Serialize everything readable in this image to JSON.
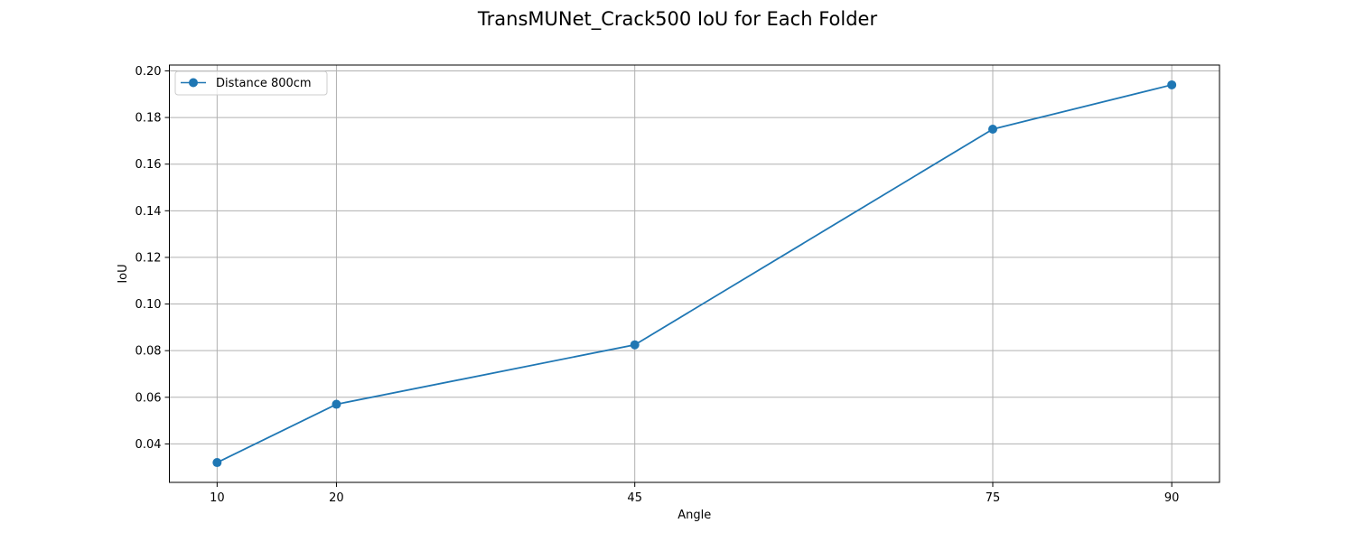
{
  "chart_data": {
    "type": "line",
    "title": "TransMUNet_Crack500 IoU for Each Folder",
    "xlabel": "Angle",
    "ylabel": "IoU",
    "x": [
      10,
      20,
      45,
      75,
      90
    ],
    "x_tick_labels": [
      "10",
      "20",
      "45",
      "75",
      "90"
    ],
    "xlim": [
      6,
      94
    ],
    "ylim": [
      0.0235,
      0.2025
    ],
    "y_ticks": [
      0.04,
      0.06,
      0.08,
      0.1,
      0.12,
      0.14,
      0.16,
      0.18,
      0.2
    ],
    "y_tick_labels": [
      "0.04",
      "0.06",
      "0.08",
      "0.10",
      "0.12",
      "0.14",
      "0.16",
      "0.18",
      "0.20"
    ],
    "grid": true,
    "legend_position": "top-left",
    "series": [
      {
        "name": "Distance 800cm",
        "marker": "circle",
        "color": "#1f77b4",
        "values": [
          0.032,
          0.057,
          0.0825,
          0.175,
          0.194
        ]
      }
    ]
  }
}
